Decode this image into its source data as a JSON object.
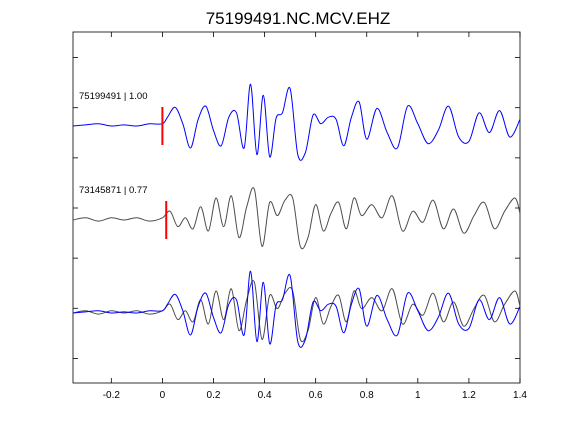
{
  "chart_data": {
    "type": "line",
    "title": "75199491.NC.MCV.EHZ",
    "xlabel": "",
    "ylabel": "",
    "xlim": [
      -0.35,
      1.4
    ],
    "x_ticks": [
      -0.2,
      0,
      0.2,
      0.4,
      0.6,
      0.8,
      1,
      1.2,
      1.4
    ],
    "x_tick_labels": [
      "-0.2",
      "0",
      "0.2",
      "0.4",
      "0.6",
      "0.8",
      "1",
      "1.2",
      "1.4"
    ],
    "y_ticks_unlabeled": 7,
    "grid": false,
    "traces": [
      {
        "label": "75199491 | 1.00",
        "color": "#0000ff",
        "pick_time": 0.0,
        "pick_color": "#ff0000",
        "x": [
          -0.35,
          -0.3,
          -0.25,
          -0.2,
          -0.15,
          -0.1,
          -0.05,
          0.0,
          0.02,
          0.05,
          0.08,
          0.11,
          0.14,
          0.17,
          0.2,
          0.23,
          0.26,
          0.29,
          0.32,
          0.345,
          0.37,
          0.395,
          0.42,
          0.445,
          0.47,
          0.5,
          0.53,
          0.56,
          0.59,
          0.62,
          0.65,
          0.68,
          0.71,
          0.74,
          0.77,
          0.8,
          0.84,
          0.88,
          0.92,
          0.96,
          1.0,
          1.04,
          1.08,
          1.12,
          1.16,
          1.2,
          1.24,
          1.28,
          1.32,
          1.36,
          1.4
        ],
        "y": [
          0.0,
          0.05,
          0.1,
          0.0,
          0.05,
          0.0,
          0.1,
          0.1,
          0.4,
          0.85,
          0.1,
          -1.0,
          0.3,
          0.9,
          -0.2,
          -0.9,
          0.4,
          0.6,
          -1.0,
          1.9,
          -1.3,
          1.4,
          -1.4,
          0.35,
          0.6,
          1.7,
          -1.3,
          -1.2,
          0.5,
          0.1,
          0.4,
          0.3,
          -0.9,
          0.4,
          1.1,
          -0.6,
          0.8,
          -0.3,
          -1.0,
          0.9,
          0.1,
          -0.8,
          -0.2,
          0.9,
          -0.5,
          -0.7,
          0.6,
          -0.3,
          0.7,
          -0.5,
          0.3
        ]
      },
      {
        "label": "73145871 | 0.77",
        "color": "#4d4d4d",
        "pick_time": 0.015,
        "pick_color": "#ff0000",
        "x": [
          -0.35,
          -0.3,
          -0.25,
          -0.2,
          -0.15,
          -0.1,
          -0.05,
          0.0,
          0.03,
          0.06,
          0.09,
          0.12,
          0.15,
          0.18,
          0.21,
          0.24,
          0.27,
          0.3,
          0.33,
          0.36,
          0.39,
          0.42,
          0.45,
          0.48,
          0.51,
          0.54,
          0.57,
          0.6,
          0.63,
          0.66,
          0.69,
          0.72,
          0.75,
          0.78,
          0.82,
          0.86,
          0.9,
          0.94,
          0.98,
          1.02,
          1.06,
          1.1,
          1.14,
          1.18,
          1.22,
          1.26,
          1.3,
          1.34,
          1.38,
          1.4
        ],
        "y": [
          0.0,
          0.1,
          -0.05,
          0.1,
          0.0,
          0.1,
          -0.05,
          0.1,
          0.4,
          -0.3,
          0.1,
          -0.4,
          0.6,
          -0.5,
          1.0,
          -0.3,
          1.1,
          -0.8,
          0.6,
          1.4,
          -1.2,
          0.8,
          0.2,
          0.9,
          1.0,
          -1.2,
          -0.8,
          0.7,
          -0.5,
          0.3,
          0.8,
          -0.4,
          1.0,
          0.2,
          0.7,
          0.1,
          1.1,
          -0.5,
          0.4,
          -0.1,
          0.9,
          -0.4,
          0.5,
          -0.6,
          0.2,
          0.8,
          -0.4,
          0.4,
          1.0,
          0.3
        ]
      },
      {
        "label": "",
        "overlay": true,
        "series": [
          {
            "color": "#4d4d4d",
            "x": [
              -0.35,
              -0.3,
              -0.25,
              -0.2,
              -0.15,
              -0.1,
              -0.05,
              0.0,
              0.03,
              0.06,
              0.09,
              0.12,
              0.15,
              0.18,
              0.21,
              0.24,
              0.27,
              0.3,
              0.33,
              0.36,
              0.39,
              0.42,
              0.45,
              0.48,
              0.51,
              0.54,
              0.57,
              0.6,
              0.63,
              0.66,
              0.69,
              0.72,
              0.75,
              0.78,
              0.82,
              0.86,
              0.9,
              0.94,
              0.98,
              1.02,
              1.06,
              1.1,
              1.14,
              1.18,
              1.22,
              1.26,
              1.3,
              1.34,
              1.38,
              1.4
            ],
            "y": [
              0.0,
              0.1,
              -0.05,
              0.1,
              0.0,
              0.1,
              -0.05,
              0.1,
              0.4,
              -0.3,
              0.1,
              -0.4,
              0.6,
              -0.5,
              1.0,
              -0.3,
              1.1,
              -0.8,
              0.6,
              1.4,
              -1.2,
              0.8,
              0.2,
              0.9,
              1.0,
              -1.2,
              -0.8,
              0.7,
              -0.5,
              0.3,
              0.8,
              -0.4,
              1.0,
              0.2,
              0.7,
              0.1,
              1.1,
              -0.5,
              0.4,
              -0.1,
              0.9,
              -0.4,
              0.5,
              -0.6,
              0.2,
              0.8,
              -0.4,
              0.4,
              1.0,
              0.3
            ]
          },
          {
            "color": "#0000ff",
            "x": [
              -0.35,
              -0.3,
              -0.25,
              -0.2,
              -0.15,
              -0.1,
              -0.05,
              0.0,
              0.02,
              0.05,
              0.08,
              0.11,
              0.14,
              0.17,
              0.2,
              0.23,
              0.26,
              0.29,
              0.32,
              0.345,
              0.37,
              0.395,
              0.42,
              0.445,
              0.47,
              0.5,
              0.53,
              0.56,
              0.59,
              0.62,
              0.65,
              0.68,
              0.71,
              0.74,
              0.77,
              0.8,
              0.84,
              0.88,
              0.92,
              0.96,
              1.0,
              1.04,
              1.08,
              1.12,
              1.16,
              1.2,
              1.24,
              1.28,
              1.32,
              1.36,
              1.4
            ],
            "y": [
              0.0,
              0.05,
              0.1,
              0.0,
              0.05,
              0.0,
              0.1,
              0.1,
              0.4,
              0.85,
              0.1,
              -1.0,
              0.3,
              0.9,
              -0.2,
              -0.9,
              0.4,
              0.6,
              -1.0,
              1.9,
              -1.3,
              1.4,
              -1.4,
              0.35,
              0.6,
              1.7,
              -1.3,
              -1.2,
              0.5,
              0.1,
              0.4,
              0.3,
              -0.9,
              0.4,
              1.1,
              -0.6,
              0.8,
              -0.3,
              -1.0,
              0.9,
              0.1,
              -0.8,
              -0.2,
              0.9,
              -0.5,
              -0.7,
              0.6,
              -0.3,
              0.7,
              -0.5,
              0.3
            ]
          }
        ]
      }
    ]
  }
}
